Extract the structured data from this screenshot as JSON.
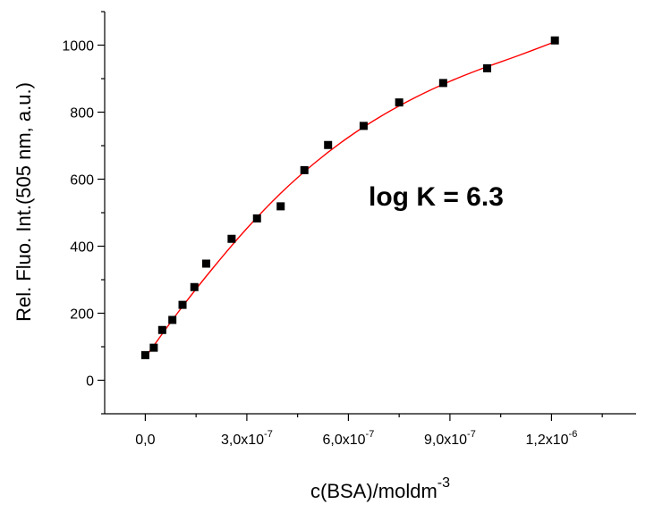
{
  "chart_data": {
    "type": "scatter",
    "xlabel": "c(BSA)/moldm",
    "xlabel_superscript": "-3",
    "ylabel": "Rel. Fluo. Int.(505 nm, a.u.)",
    "annotation": "log K = 6.3",
    "xlim": [
      -1.2e-07,
      1.45e-06
    ],
    "ylim": [
      -100,
      1100
    ],
    "x_ticks": [
      {
        "value": 0,
        "mantissa": "0,0",
        "exponent": ""
      },
      {
        "value": 3e-07,
        "mantissa": "3,0x10",
        "exponent": "-7"
      },
      {
        "value": 6e-07,
        "mantissa": "6,0x10",
        "exponent": "-7"
      },
      {
        "value": 9e-07,
        "mantissa": "9,0x10",
        "exponent": "-7"
      },
      {
        "value": 1.2e-06,
        "mantissa": "1,2x10",
        "exponent": "-6"
      }
    ],
    "y_ticks": [
      0,
      200,
      400,
      600,
      800,
      1000
    ],
    "y_tick_labels": [
      "0",
      "200",
      "400",
      "600",
      "800",
      "1000"
    ],
    "series": [
      {
        "type": "scatter",
        "color": "#000000",
        "marker": "square",
        "x": [
          0,
          2.5e-08,
          5e-08,
          8e-08,
          1.1e-07,
          1.45e-07,
          1.8e-07,
          2.55e-07,
          3.3e-07,
          4e-07,
          4.7e-07,
          5.4e-07,
          6.45e-07,
          7.5e-07,
          8.8e-07,
          1.01e-06,
          1.21e-06
        ],
        "y": [
          75,
          97,
          150,
          180,
          225,
          278,
          348,
          422,
          483,
          519,
          627,
          702,
          759,
          829,
          887,
          931,
          1014
        ]
      },
      {
        "type": "line",
        "color": "#ff0000",
        "x": [
          0,
          1e-07,
          2e-07,
          3e-07,
          4e-07,
          5e-07,
          6e-07,
          7e-07,
          8e-07,
          9e-07,
          1e-06,
          1.1e-06,
          1.21e-06
        ],
        "y": [
          68,
          207,
          335,
          453,
          558,
          648,
          725,
          790,
          845,
          892,
          932,
          968,
          1010
        ]
      }
    ]
  }
}
